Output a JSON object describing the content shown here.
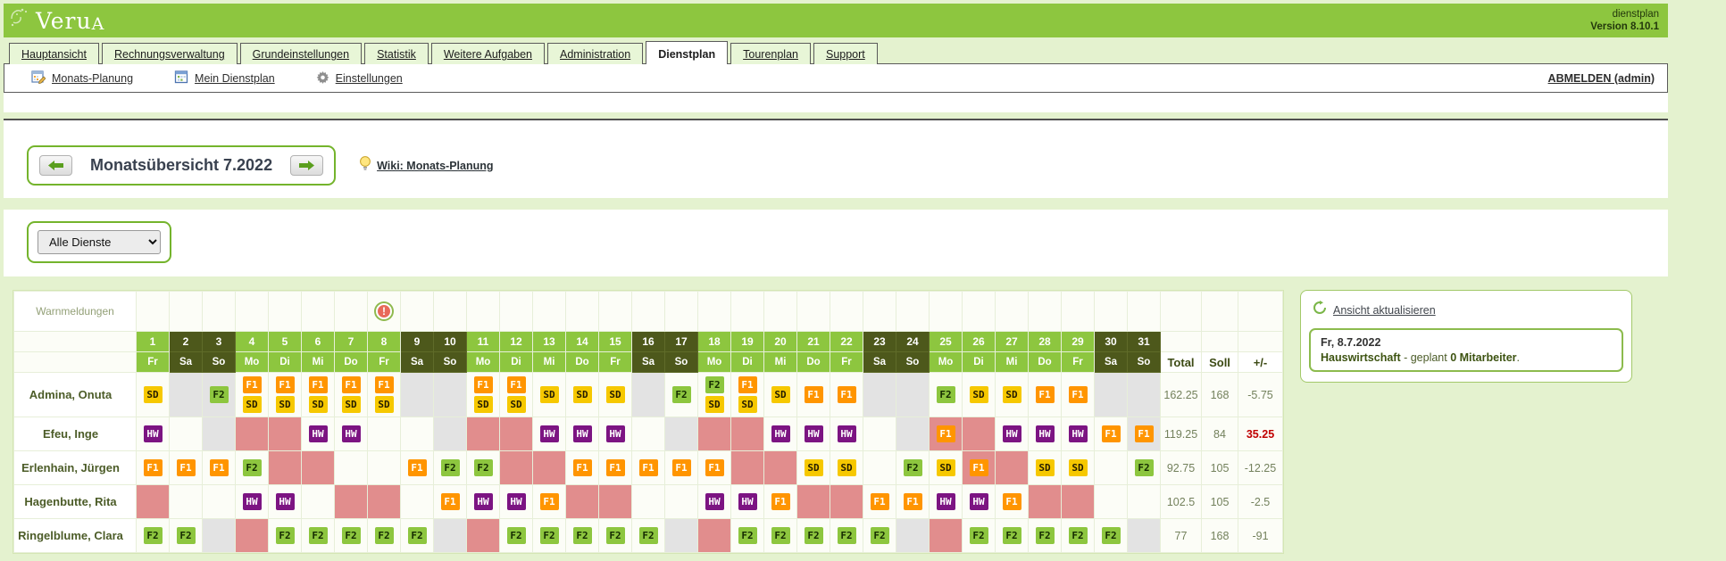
{
  "header": {
    "logo": "Veru",
    "logo_suffix": "A",
    "app_label": "dienstplan",
    "version_label": "Version 8.10.1"
  },
  "tabs": [
    {
      "label": "Hauptansicht",
      "active": false
    },
    {
      "label": "Rechnungsverwaltung",
      "active": false
    },
    {
      "label": "Grundeinstellungen",
      "active": false
    },
    {
      "label": "Statistik",
      "active": false
    },
    {
      "label": "Weitere Aufgaben",
      "active": false
    },
    {
      "label": "Administration",
      "active": false
    },
    {
      "label": "Dienstplan",
      "active": true
    },
    {
      "label": "Tourenplan",
      "active": false
    },
    {
      "label": "Support",
      "active": false
    }
  ],
  "toolbar": {
    "items": [
      {
        "label": "Monats-Planung",
        "icon": "calendar-edit-icon"
      },
      {
        "label": "Mein Dienstplan",
        "icon": "calendar-icon"
      },
      {
        "label": "Einstellungen",
        "icon": "gear-icon"
      }
    ],
    "logout_label": "ABMELDEN (admin)"
  },
  "month_nav": {
    "title": "Monatsübersicht 7.2022",
    "prev_icon": "arrow-left-icon",
    "next_icon": "arrow-right-icon",
    "wiki_label": "Wiki: Monats-Planung",
    "wiki_icon": "lightbulb-icon"
  },
  "filter": {
    "selected_option": "Alle Dienste"
  },
  "roster": {
    "warn_label": "Warnmeldungen",
    "warning_day": 8,
    "day_numbers": [
      1,
      2,
      3,
      4,
      5,
      6,
      7,
      8,
      9,
      10,
      11,
      12,
      13,
      14,
      15,
      16,
      17,
      18,
      19,
      20,
      21,
      22,
      23,
      24,
      25,
      26,
      27,
      28,
      29,
      30,
      31
    ],
    "weekdays": [
      "Fr",
      "Sa",
      "So",
      "Mo",
      "Di",
      "Mi",
      "Do",
      "Fr",
      "Sa",
      "So",
      "Mo",
      "Di",
      "Mi",
      "Do",
      "Fr",
      "Sa",
      "So",
      "Mo",
      "Di",
      "Mi",
      "Do",
      "Fr",
      "Sa",
      "So",
      "Mo",
      "Di",
      "Mi",
      "Do",
      "Fr",
      "Sa",
      "So"
    ],
    "weekend_days": [
      2,
      3,
      9,
      10,
      16,
      17,
      23,
      24,
      30,
      31
    ],
    "totals_headers": [
      "Total",
      "Soll",
      "+/-"
    ],
    "legend": {
      "cell_backgrounds": {
        "w": "#fcfdf7",
        "g": "#e3e3e3",
        "p": "#e18d8d"
      },
      "shift_codes": {
        "SD": {
          "bg": "#f6c800",
          "fg": "#241c00"
        },
        "F1": {
          "bg": "#ff9500",
          "fg": "#ffffff"
        },
        "F2": {
          "bg": "#8dc63f",
          "fg": "#152b00"
        },
        "HW": {
          "bg": "#7c1482",
          "fg": "#ffffff"
        }
      }
    },
    "employees": [
      {
        "name": "Admina, Onuta",
        "cells": [
          "w:SD",
          "g",
          "g:F2",
          "w:F1+SD",
          "w:F1+SD",
          "w:F1+SD",
          "w:F1+SD",
          "w:F1+SD",
          "g",
          "g",
          "w:F1+SD",
          "w:F1+SD",
          "w:SD",
          "w:SD",
          "w:SD",
          "g",
          "w:F2",
          "w:F2+SD",
          "w:F1+SD",
          "w:SD",
          "w:F1",
          "w:F1",
          "g",
          "g",
          "w:F2",
          "w:SD",
          "w:SD",
          "w:F1",
          "w:F1",
          "g",
          "g"
        ],
        "total": "162.25",
        "soll": "168",
        "diff": "-5.75",
        "diff_red": false
      },
      {
        "name": "Efeu, Inge",
        "cells": [
          "w:HW",
          "w",
          "g",
          "p",
          "p",
          "w:HW",
          "w:HW",
          "w",
          "w",
          "g",
          "p",
          "p",
          "w:HW",
          "w:HW",
          "w:HW",
          "w",
          "g",
          "p",
          "p",
          "w:HW",
          "w:HW",
          "w:HW",
          "w",
          "g",
          "p:F1",
          "p",
          "w:HW",
          "w:HW",
          "w:HW",
          "w:F1",
          "g:F1"
        ],
        "total": "119.25",
        "soll": "84",
        "diff": "35.25",
        "diff_red": true
      },
      {
        "name": "Erlenhain, Jürgen",
        "cells": [
          "w:F1",
          "w:F1",
          "w:F1",
          "w:F2",
          "p",
          "p",
          "w",
          "w",
          "w:F1",
          "w:F2",
          "w:F2",
          "p",
          "p",
          "w:F1",
          "w:F1",
          "w:F1",
          "w:F1",
          "w:F1",
          "p",
          "p",
          "w:SD",
          "w:SD",
          "w",
          "w:F2",
          "w:SD",
          "p:F1",
          "p",
          "w:SD",
          "w:SD",
          "w",
          "w:F2"
        ],
        "total": "92.75",
        "soll": "105",
        "diff": "-12.25",
        "diff_red": false
      },
      {
        "name": "Hagenbutte, Rita",
        "cells": [
          "p",
          "w",
          "w",
          "w:HW",
          "w:HW",
          "w",
          "p",
          "p",
          "w",
          "w:F1",
          "w:HW",
          "w:HW",
          "w:F1",
          "p",
          "p",
          "w",
          "w",
          "w:HW",
          "w:HW",
          "w:F1",
          "p",
          "p",
          "w:F1",
          "w:F1",
          "w:HW",
          "w:HW",
          "w:F1",
          "p",
          "p",
          "w",
          "w"
        ],
        "total": "102.5",
        "soll": "105",
        "diff": "-2.5",
        "diff_red": false
      },
      {
        "name": "Ringelblume, Clara",
        "cells": [
          "w:F2",
          "w:F2",
          "g",
          "p",
          "w:F2",
          "w:F2",
          "w:F2",
          "w:F2",
          "w:F2",
          "g",
          "p",
          "w:F2",
          "w:F2",
          "w:F2",
          "w:F2",
          "w:F2",
          "g",
          "p",
          "w:F2",
          "w:F2",
          "w:F2",
          "w:F2",
          "w:F2",
          "g",
          "p",
          "w:F2",
          "w:F2",
          "w:F2",
          "w:F2",
          "w:F2",
          "g"
        ],
        "total": "77",
        "soll": "168",
        "diff": "-91",
        "diff_red": false
      }
    ]
  },
  "panel": {
    "refresh_label": "Ansicht aktualisieren",
    "refresh_icon": "refresh-icon",
    "info_date": "Fr, 8.7.2022",
    "info_department": "Hauswirtschaft",
    "info_middle": " - geplant ",
    "info_count": "0 Mitarbeiter",
    "info_period": "."
  }
}
